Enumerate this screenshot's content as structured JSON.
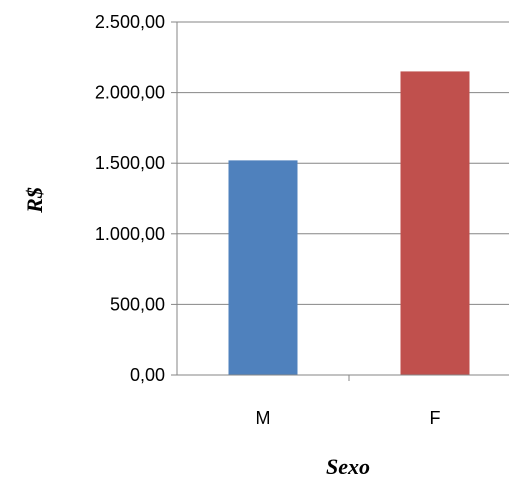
{
  "chart_data": {
    "type": "bar",
    "title": "",
    "xlabel": "Sexo",
    "ylabel": "R$",
    "categories": [
      "M",
      "F"
    ],
    "values": [
      1520,
      2150
    ],
    "colors": [
      "#4f81bd",
      "#c0504d"
    ],
    "ylim": [
      0,
      2500
    ],
    "yticks": [
      0,
      500,
      1000,
      1500,
      2000,
      2500
    ],
    "ytick_labels": [
      "0,00",
      "500,00",
      "1.000,00",
      "1.500,00",
      "2.000,00",
      "2.500,00"
    ],
    "grid": true,
    "gridline_color": "#868686",
    "axis_color": "#868686"
  }
}
